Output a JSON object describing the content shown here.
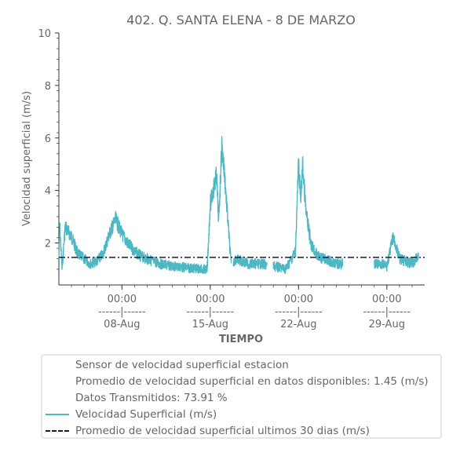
{
  "chart_data": {
    "type": "line",
    "title": "402. Q. SANTA ELENA - 8 DE MARZO",
    "xlabel": "TIEMPO",
    "ylabel": "Velocidad superficial (m/s)",
    "ylim": [
      0.4,
      10
    ],
    "yticks": [
      2,
      4,
      6,
      8,
      10
    ],
    "xlim": [
      "2020-08-03",
      "2020-09-01"
    ],
    "xticks": [
      {
        "date": "2020-08-08",
        "line1": "00:00",
        "line2": "------|------",
        "line3": "08-Aug"
      },
      {
        "date": "2020-08-15",
        "line1": "00:00",
        "line2": "------|------",
        "line3": "15-Aug"
      },
      {
        "date": "2020-08-22",
        "line1": "00:00",
        "line2": "------|------",
        "line3": "22-Aug"
      },
      {
        "date": "2020-08-29",
        "line1": "00:00",
        "line2": "------|------",
        "line3": "29-Aug"
      }
    ],
    "grid": false,
    "legend_placement": "below",
    "series": [
      {
        "name": "Velocidad Superficial (m/s)",
        "color": "#4db8c4",
        "style": "solid",
        "points": [
          [
            "2020-08-03 00:00",
            1.6
          ],
          [
            "2020-08-03 02:00",
            2.8
          ],
          [
            "2020-08-03 06:00",
            1.2
          ],
          [
            "2020-08-03 12:00",
            2.9
          ],
          [
            "2020-08-04 00:00",
            2.5
          ],
          [
            "2020-08-04 12:00",
            1.8
          ],
          [
            "2020-08-05 00:00",
            1.6
          ],
          [
            "2020-08-05 12:00",
            1.4
          ],
          [
            "2020-08-06 00:00",
            1.5
          ],
          [
            "2020-08-06 12:00",
            1.8
          ],
          [
            "2020-08-07 00:00",
            2.6
          ],
          [
            "2020-08-07 12:00",
            3.2
          ],
          [
            "2020-08-08 00:00",
            2.6
          ],
          [
            "2020-08-08 12:00",
            2.2
          ],
          [
            "2020-08-09 00:00",
            1.9
          ],
          [
            "2020-08-09 12:00",
            1.7
          ],
          [
            "2020-08-10 00:00",
            1.6
          ],
          [
            "2020-08-11 00:00",
            1.4
          ],
          [
            "2020-08-12 00:00",
            1.3
          ],
          [
            "2020-08-13 00:00",
            1.25
          ],
          [
            "2020-08-14 00:00",
            1.2
          ],
          [
            "2020-08-14 18:00",
            1.15
          ],
          [
            "2020-08-15 00:00",
            3.8
          ],
          [
            "2020-08-15 06:00",
            4.4
          ],
          [
            "2020-08-15 12:00",
            5.0
          ],
          [
            "2020-08-15 16:00",
            3.1
          ],
          [
            "2020-08-15 22:00",
            6.2
          ],
          [
            "2020-08-16 04:00",
            4.8
          ],
          [
            "2020-08-16 10:00",
            3.0
          ],
          [
            "2020-08-16 16:00",
            1.3
          ],
          [
            "2020-08-17 00:00",
            1.6
          ],
          [
            "2020-08-17 12:00",
            1.5
          ],
          [
            "2020-08-18 00:00",
            1.4
          ],
          [
            "2020-08-19 00:00",
            1.4
          ],
          [
            "2020-08-21 00:00",
            1.2
          ],
          [
            "2020-08-21 18:00",
            1.9
          ],
          [
            "2020-08-22 00:00",
            5.5
          ],
          [
            "2020-08-22 04:00",
            4.0
          ],
          [
            "2020-08-22 08:00",
            5.4
          ],
          [
            "2020-08-22 14:00",
            3.5
          ],
          [
            "2020-08-23 00:00",
            2.2
          ],
          [
            "2020-08-23 12:00",
            1.7
          ],
          [
            "2020-08-24 00:00",
            1.6
          ],
          [
            "2020-08-24 12:00",
            1.5
          ],
          [
            "2020-08-25 00:00",
            1.4
          ],
          [
            "2020-08-28 12:00",
            1.4
          ],
          [
            "2020-08-29 00:00",
            1.3
          ],
          [
            "2020-08-29 12:00",
            2.5
          ],
          [
            "2020-08-30 00:00",
            1.6
          ],
          [
            "2020-08-31 00:00",
            1.4
          ],
          [
            "2020-08-31 12:00",
            1.7
          ]
        ],
        "gaps": [
          [
            "2020-08-16 16:00",
            "2020-08-16 20:00"
          ],
          [
            "2020-08-19 12:00",
            "2020-08-20 00:00"
          ],
          [
            "2020-08-25 12:00",
            "2020-08-28 00:00"
          ]
        ]
      },
      {
        "name": "Promedio de velocidad superficial ultimos 30 dias (m/s)",
        "color": "#1a1a3a",
        "style": "dashdot",
        "value": 1.45
      }
    ],
    "legend_entries": [
      {
        "text": "Sensor de velocidad superficial estacion",
        "marker": "none"
      },
      {
        "text": "Promedio de velocidad superficial en datos disponibles: 1.45 (m/s)",
        "marker": "none"
      },
      {
        "text": "Datos Transmitidos: 73.91 %",
        "marker": "none"
      },
      {
        "text": "Velocidad Superficial (m/s)",
        "marker": "solid",
        "color": "#4db8c4"
      },
      {
        "text": "Promedio de velocidad superficial ultimos 30 dias (m/s)",
        "marker": "dashdot",
        "color": "#1a1a3a"
      }
    ]
  }
}
